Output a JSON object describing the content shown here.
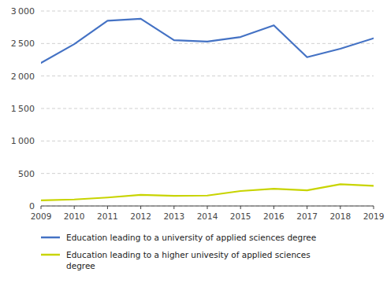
{
  "chart_data": {
    "type": "line",
    "x": [
      2009,
      2010,
      2011,
      2012,
      2013,
      2014,
      2015,
      2016,
      2017,
      2018,
      2019
    ],
    "series": [
      {
        "name": "Education leading to a university of applied sciences degree",
        "color": "#4472c4",
        "values": [
          2200,
          2490,
          2850,
          2880,
          2550,
          2530,
          2600,
          2780,
          2290,
          2420,
          2580
        ]
      },
      {
        "name": "Education leading to a higher univesity of applied sciences\ndegree",
        "color": "#c8d400",
        "values": [
          85,
          100,
          130,
          170,
          155,
          160,
          230,
          265,
          240,
          335,
          310
        ]
      }
    ],
    "xlim": [
      2009,
      2019
    ],
    "xticks": [
      2009,
      2010,
      2011,
      2012,
      2013,
      2014,
      2015,
      2016,
      2017,
      2018,
      2019
    ],
    "ylim": [
      0,
      3000
    ],
    "yticks": [
      0,
      500,
      {
        "value": 1000,
        "label": "1 000"
      },
      {
        "value": 1500,
        "label": "1 500"
      },
      {
        "value": 2000,
        "label": "2 000"
      },
      {
        "value": 2500,
        "label": "2 500"
      },
      {
        "value": 3000,
        "label": "3 000"
      }
    ],
    "grid": true,
    "legend": "bottom"
  }
}
